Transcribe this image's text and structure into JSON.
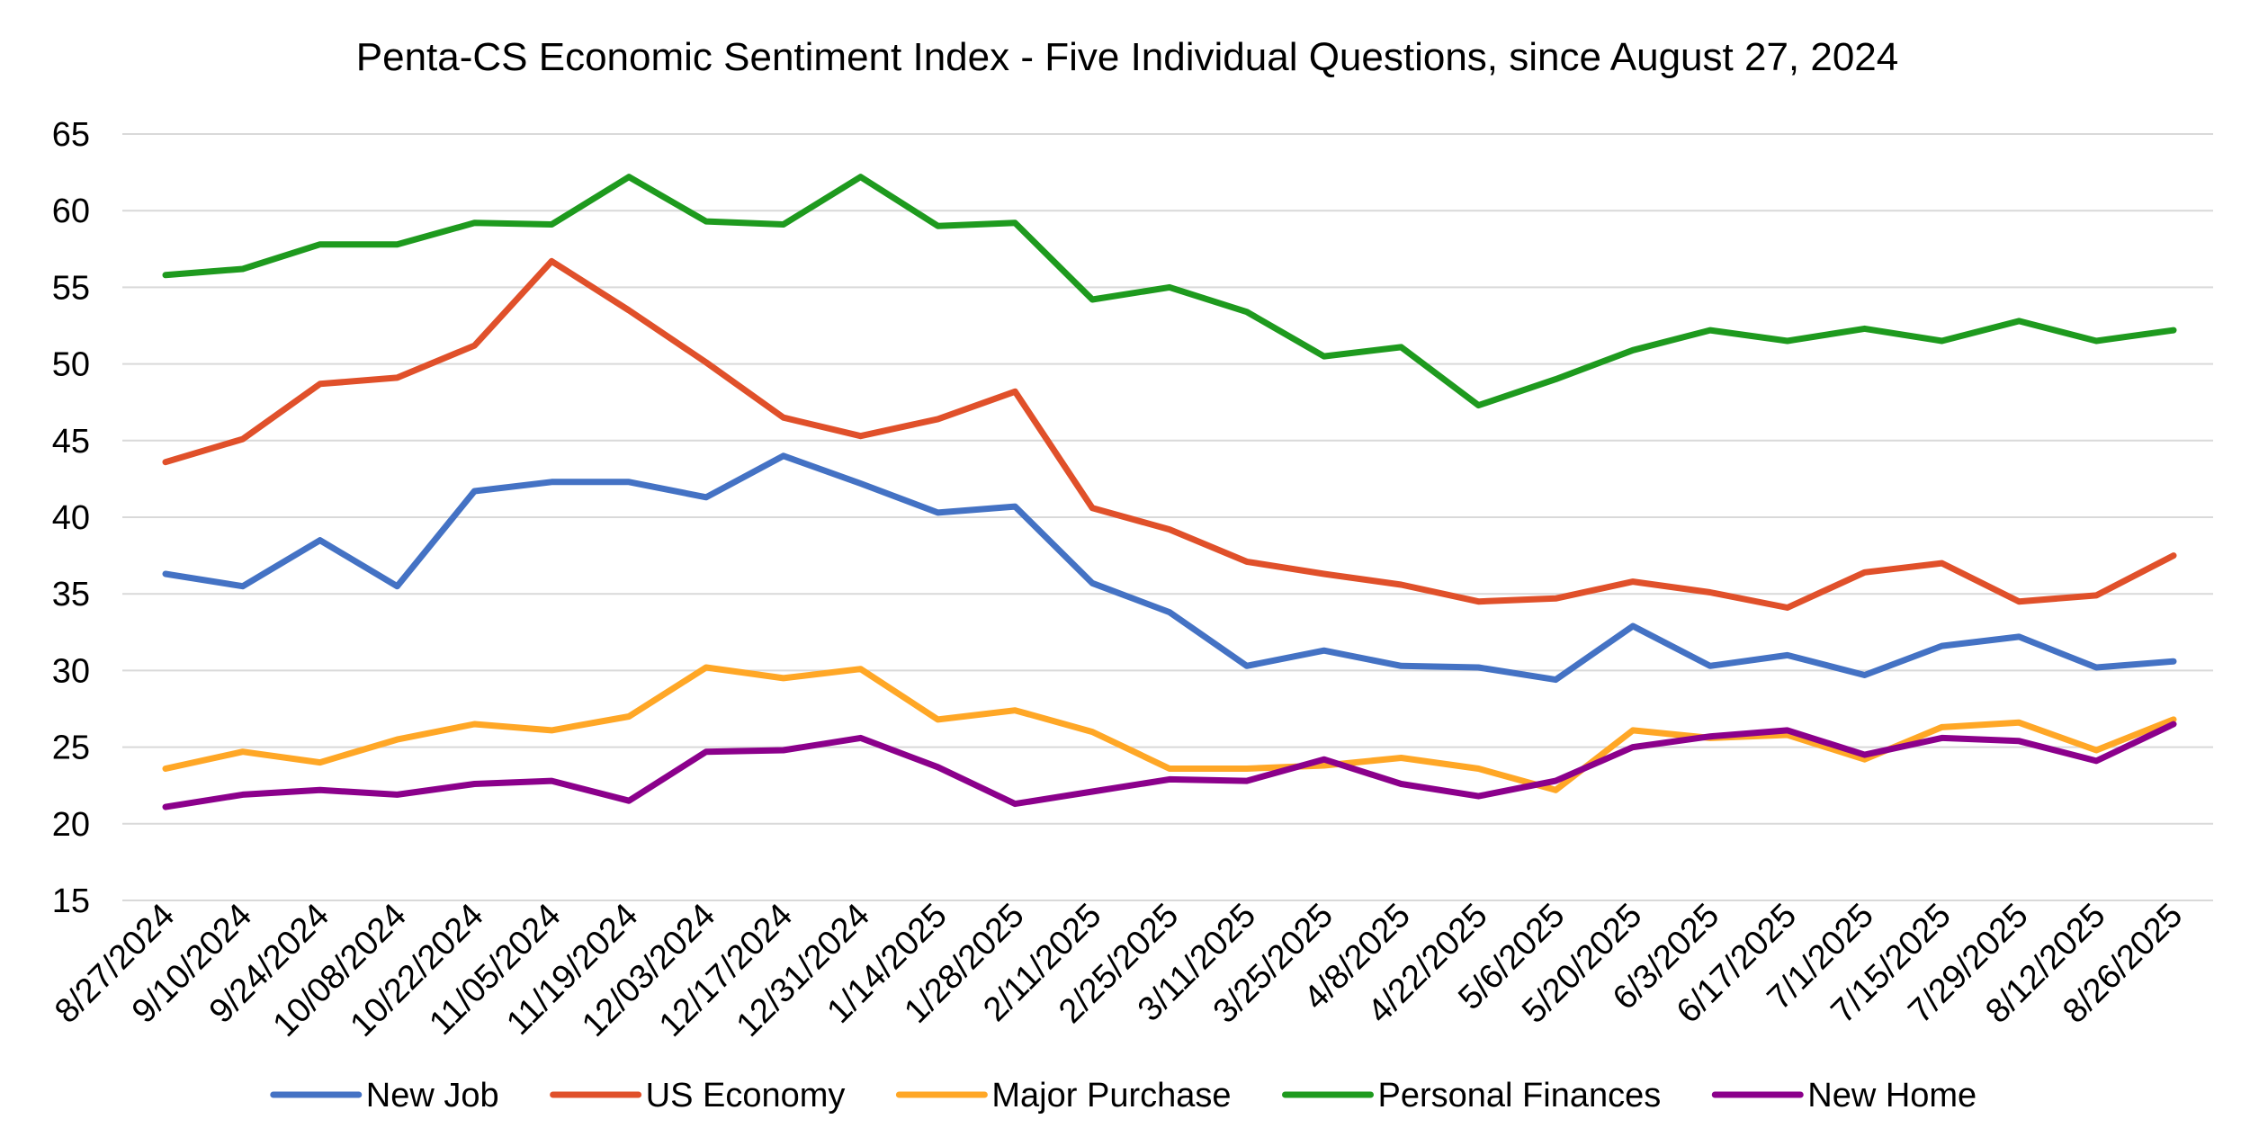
{
  "chart_data": {
    "type": "line",
    "title": "Penta-CS Economic Sentiment Index - Five Individual Questions, since August 27, 2024",
    "xlabel": "",
    "ylabel": "",
    "ylim": [
      15,
      65
    ],
    "yticks": [
      "15",
      "20",
      "25",
      "30",
      "35",
      "40",
      "45",
      "50",
      "55",
      "60",
      "65"
    ],
    "grid": true,
    "legend_position": "bottom",
    "categories": [
      "8/27/2024",
      "9/10/2024",
      "9/24/2024",
      "10/08/2024",
      "10/22/2024",
      "11/05/2024",
      "11/19/2024",
      "12/03/2024",
      "12/17/2024",
      "12/31/2024",
      "1/14/2025",
      "1/28/2025",
      "2/11/2025",
      "2/25/2025",
      "3/11/2025",
      "3/25/2025",
      "4/8/2025",
      "4/22/2025",
      "5/6/2025",
      "5/20/2025",
      "6/3/2025",
      "6/17/2025",
      "7/1/2025",
      "7/15/2025",
      "7/29/2025",
      "8/12/2025",
      "8/26/2025"
    ],
    "series": [
      {
        "name": "New Job",
        "color": "#4472c4",
        "values": [
          36.3,
          35.5,
          38.5,
          35.5,
          41.7,
          42.3,
          42.3,
          41.3,
          44.0,
          42.2,
          40.3,
          40.7,
          35.7,
          33.8,
          30.3,
          31.3,
          30.3,
          30.2,
          29.4,
          32.9,
          30.3,
          31.0,
          29.7,
          31.6,
          32.2,
          30.2,
          30.6
        ]
      },
      {
        "name": "US Economy",
        "color": "#e0502a",
        "values": [
          43.6,
          45.1,
          48.7,
          49.1,
          51.2,
          56.7,
          53.5,
          50.1,
          46.5,
          45.3,
          46.4,
          48.2,
          40.6,
          39.2,
          37.1,
          36.3,
          35.6,
          34.5,
          34.7,
          35.8,
          35.1,
          34.1,
          36.4,
          37.0,
          34.5,
          34.9,
          37.5
        ]
      },
      {
        "name": "Major Purchase",
        "color": "#ffa726",
        "values": [
          23.6,
          24.7,
          24.0,
          25.5,
          26.5,
          26.1,
          27.0,
          30.2,
          29.5,
          30.1,
          26.8,
          27.4,
          26.0,
          23.6,
          23.6,
          23.8,
          24.3,
          23.6,
          22.2,
          26.1,
          25.6,
          25.8,
          24.2,
          26.3,
          26.6,
          24.8,
          26.8
        ]
      },
      {
        "name": "Personal Finances",
        "color": "#1e9a1e",
        "values": [
          55.8,
          56.2,
          57.8,
          57.8,
          59.2,
          59.1,
          62.2,
          59.3,
          59.1,
          62.2,
          59.0,
          59.2,
          54.2,
          55.0,
          53.4,
          50.5,
          51.1,
          47.3,
          49.0,
          50.9,
          52.2,
          51.5,
          52.3,
          51.5,
          52.8,
          51.5,
          52.2
        ]
      },
      {
        "name": "New Home",
        "color": "#8b008b",
        "values": [
          21.1,
          21.9,
          22.2,
          21.9,
          22.6,
          22.8,
          21.5,
          24.7,
          24.8,
          25.6,
          23.7,
          21.3,
          22.1,
          22.9,
          22.8,
          24.2,
          22.6,
          21.8,
          22.8,
          25.0,
          25.7,
          26.1,
          24.5,
          25.6,
          25.4,
          24.1,
          26.5
        ]
      }
    ]
  }
}
